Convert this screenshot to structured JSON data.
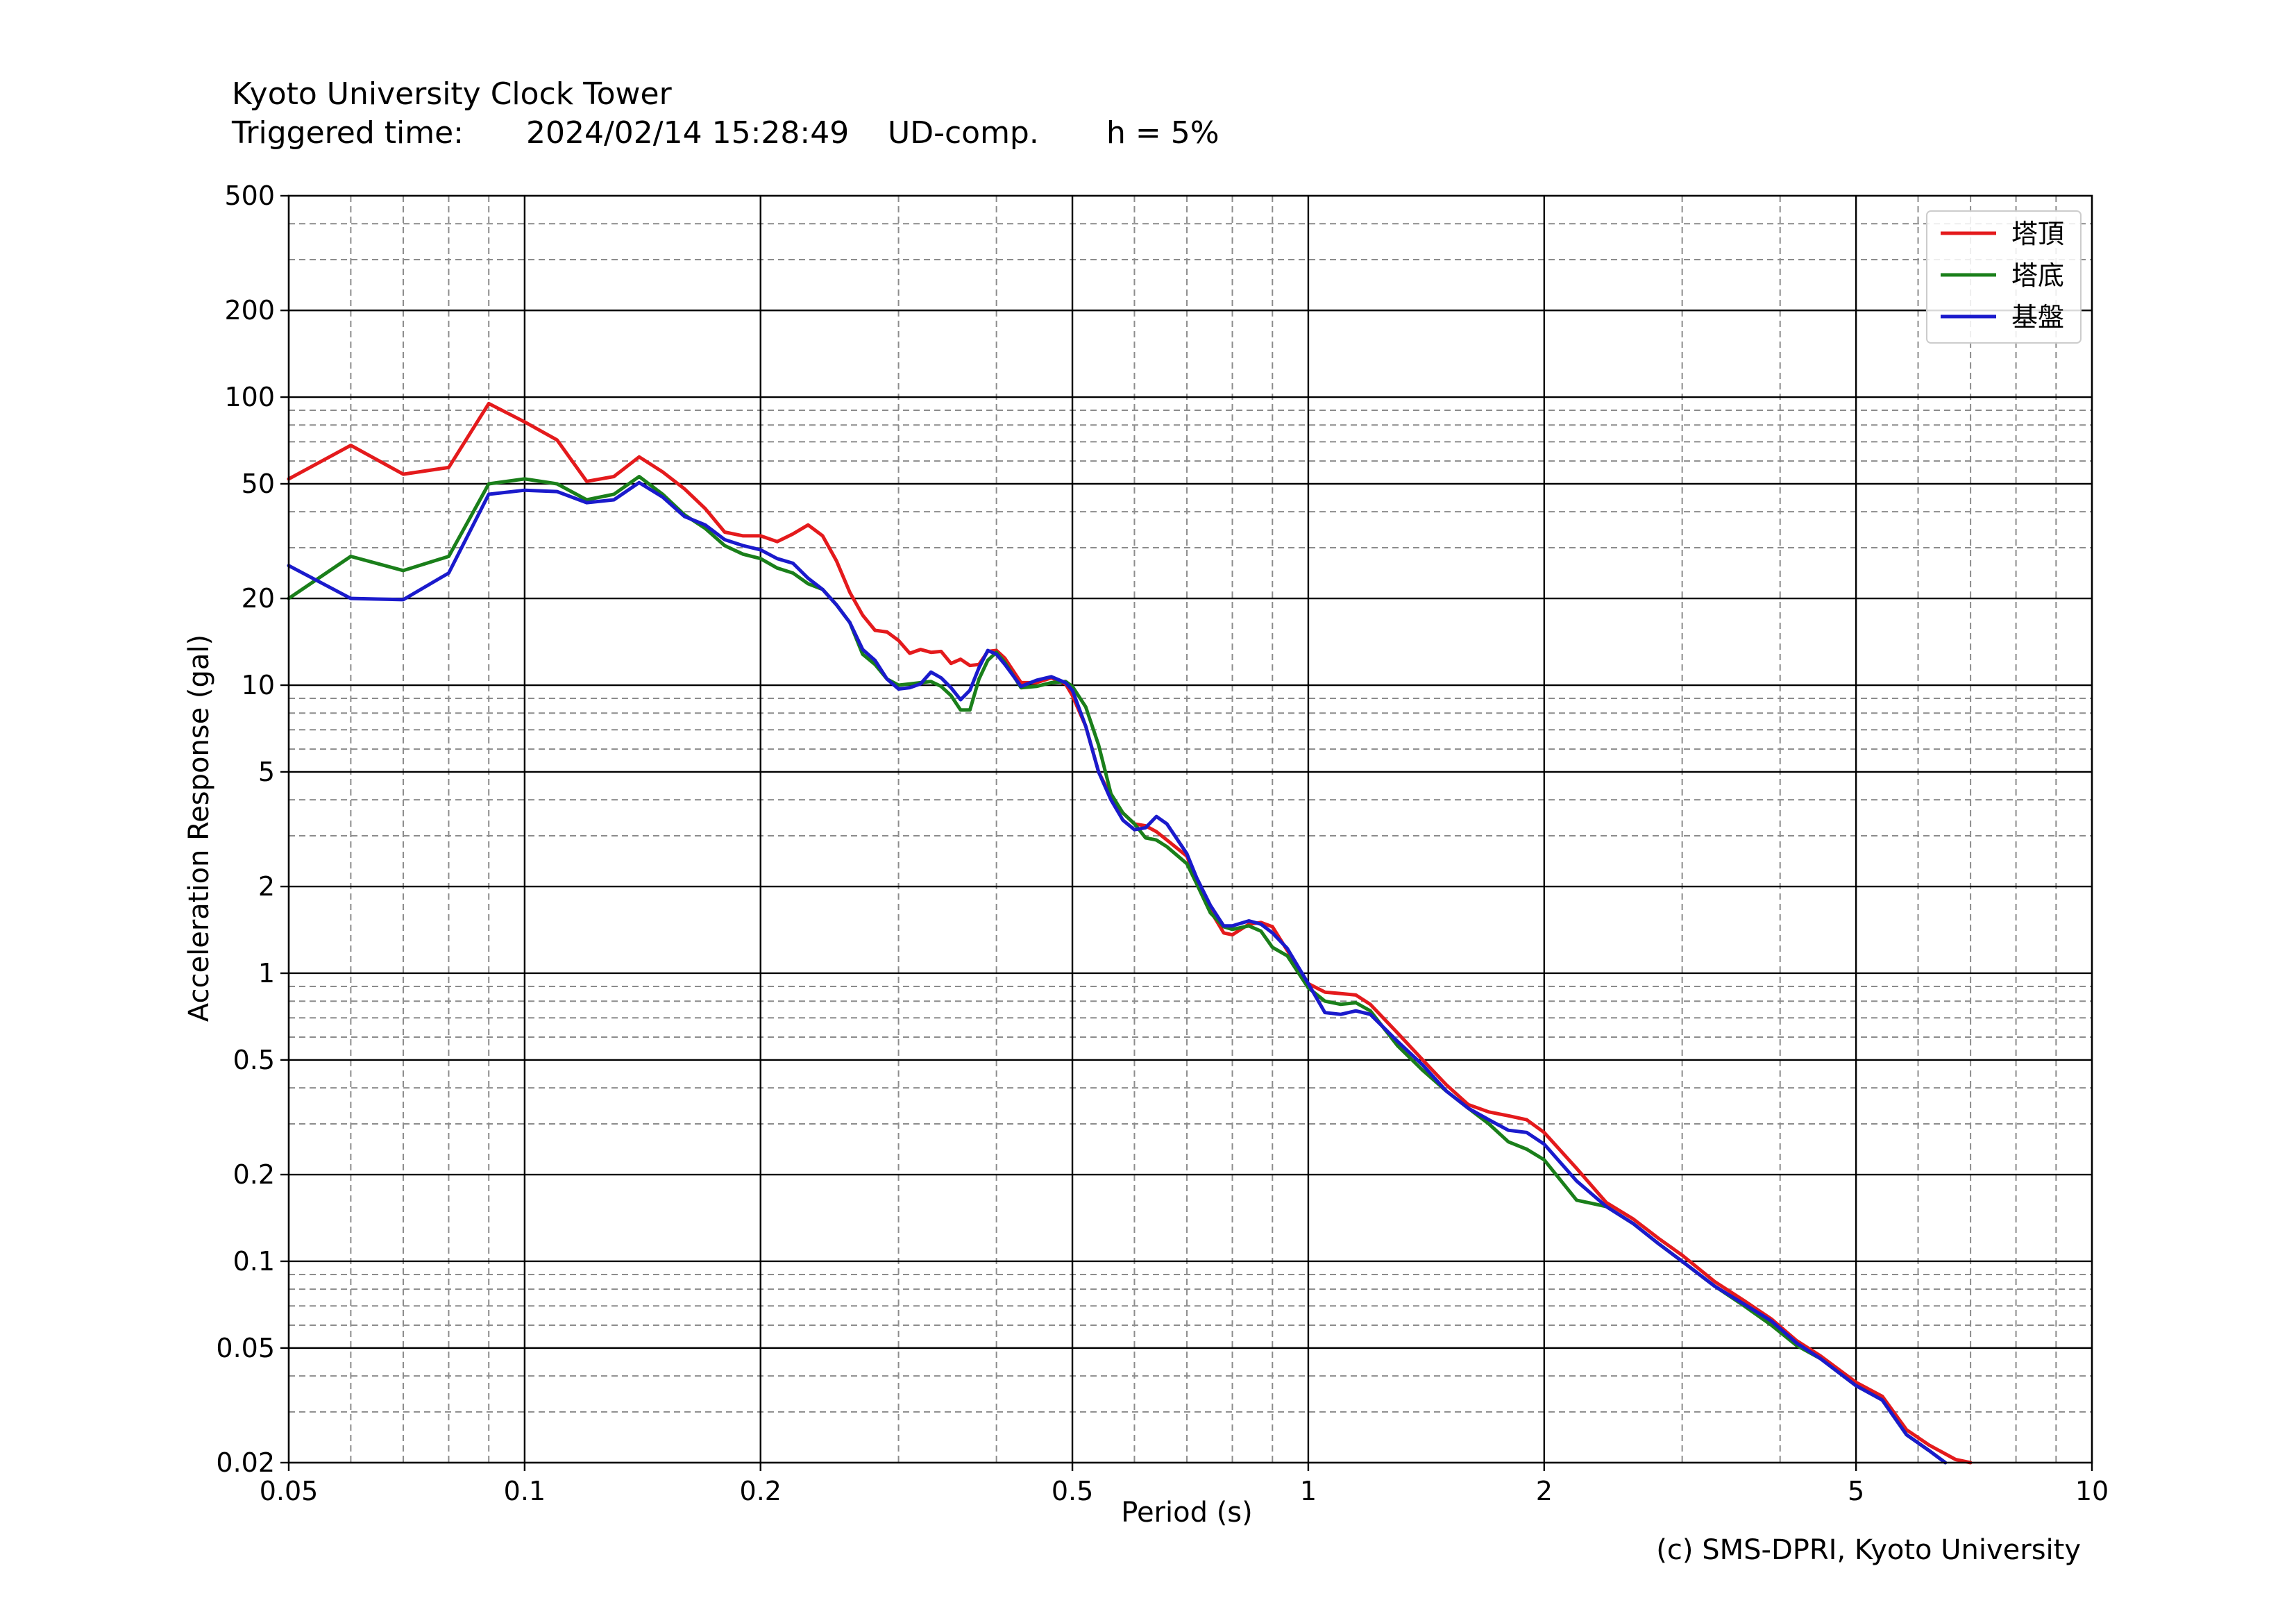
{
  "header": {
    "site": "Kyoto University Clock Tower",
    "triggered_label": "Triggered time:",
    "triggered_time": "2024/02/14 15:28:49",
    "component": "UD-comp.",
    "damping": "h = 5%"
  },
  "credit": "(c) SMS-DPRI, Kyoto University",
  "chart_data": {
    "type": "line",
    "title": "",
    "xlabel": "Period (s)",
    "ylabel": "Acceleration Response (gal)",
    "x_scale": "log",
    "y_scale": "log",
    "xlim": [
      0.05,
      10
    ],
    "ylim": [
      0.02,
      500
    ],
    "grid": true,
    "legend_position": "top-right",
    "x_ticks": [
      0.05,
      0.1,
      0.2,
      0.5,
      1,
      2,
      5,
      10
    ],
    "x_tick_labels": [
      "0.05",
      "0.1",
      "0.2",
      "0.5",
      "1",
      "2",
      "5",
      "10"
    ],
    "y_ticks": [
      0.02,
      0.05,
      0.1,
      0.2,
      0.5,
      1,
      2,
      5,
      10,
      20,
      50,
      100,
      200,
      500
    ],
    "y_tick_labels": [
      "0.02",
      "0.05",
      "0.1",
      "0.2",
      "0.5",
      "1",
      "2",
      "5",
      "10",
      "20",
      "50",
      "100",
      "200",
      "500"
    ],
    "series": [
      {
        "name": "塔頂",
        "color": "#e41a1c",
        "points": [
          [
            0.05,
            52
          ],
          [
            0.06,
            68
          ],
          [
            0.07,
            54
          ],
          [
            0.08,
            57
          ],
          [
            0.09,
            95
          ],
          [
            0.1,
            82
          ],
          [
            0.11,
            71
          ],
          [
            0.12,
            51
          ],
          [
            0.13,
            53
          ],
          [
            0.14,
            62
          ],
          [
            0.15,
            55
          ],
          [
            0.16,
            48
          ],
          [
            0.17,
            41
          ],
          [
            0.18,
            34
          ],
          [
            0.19,
            33
          ],
          [
            0.2,
            33
          ],
          [
            0.21,
            31.5
          ],
          [
            0.22,
            33.5
          ],
          [
            0.23,
            36
          ],
          [
            0.24,
            33
          ],
          [
            0.25,
            27
          ],
          [
            0.26,
            21
          ],
          [
            0.27,
            17.5
          ],
          [
            0.28,
            15.5
          ],
          [
            0.29,
            15.3
          ],
          [
            0.3,
            14.3
          ],
          [
            0.31,
            12.9
          ],
          [
            0.32,
            13.3
          ],
          [
            0.33,
            13
          ],
          [
            0.34,
            13.1
          ],
          [
            0.35,
            11.9
          ],
          [
            0.36,
            12.3
          ],
          [
            0.37,
            11.7
          ],
          [
            0.38,
            11.8
          ],
          [
            0.39,
            13.1
          ],
          [
            0.4,
            13.2
          ],
          [
            0.41,
            12.4
          ],
          [
            0.43,
            10.2
          ],
          [
            0.45,
            10.2
          ],
          [
            0.47,
            10.6
          ],
          [
            0.49,
            10.1
          ],
          [
            0.5,
            9.2
          ],
          [
            0.52,
            7.2
          ],
          [
            0.54,
            5
          ],
          [
            0.56,
            4.1
          ],
          [
            0.58,
            3.6
          ],
          [
            0.6,
            3.3
          ],
          [
            0.62,
            3.25
          ],
          [
            0.64,
            3.1
          ],
          [
            0.66,
            2.9
          ],
          [
            0.7,
            2.55
          ],
          [
            0.72,
            2.1
          ],
          [
            0.75,
            1.65
          ],
          [
            0.78,
            1.38
          ],
          [
            0.8,
            1.36
          ],
          [
            0.84,
            1.48
          ],
          [
            0.87,
            1.5
          ],
          [
            0.9,
            1.45
          ],
          [
            0.94,
            1.2
          ],
          [
            1,
            0.92
          ],
          [
            1.05,
            0.86
          ],
          [
            1.1,
            0.85
          ],
          [
            1.15,
            0.84
          ],
          [
            1.2,
            0.78
          ],
          [
            1.3,
            0.62
          ],
          [
            1.4,
            0.5
          ],
          [
            1.5,
            0.41
          ],
          [
            1.6,
            0.35
          ],
          [
            1.7,
            0.33
          ],
          [
            1.8,
            0.32
          ],
          [
            1.9,
            0.31
          ],
          [
            2,
            0.28
          ],
          [
            2.2,
            0.21
          ],
          [
            2.4,
            0.16
          ],
          [
            2.6,
            0.14
          ],
          [
            2.8,
            0.12
          ],
          [
            3,
            0.105
          ],
          [
            3.3,
            0.085
          ],
          [
            3.6,
            0.073
          ],
          [
            3.9,
            0.063
          ],
          [
            4.2,
            0.053
          ],
          [
            4.5,
            0.047
          ],
          [
            5,
            0.038
          ],
          [
            5.4,
            0.034
          ],
          [
            5.8,
            0.026
          ],
          [
            6.2,
            0.023
          ],
          [
            6.7,
            0.0205
          ],
          [
            7,
            0.02
          ]
        ]
      },
      {
        "name": "塔底",
        "color": "#1a7f1a",
        "points": [
          [
            0.05,
            20
          ],
          [
            0.06,
            28
          ],
          [
            0.07,
            25
          ],
          [
            0.08,
            28
          ],
          [
            0.09,
            50
          ],
          [
            0.1,
            52
          ],
          [
            0.11,
            50
          ],
          [
            0.12,
            44
          ],
          [
            0.13,
            46
          ],
          [
            0.14,
            53
          ],
          [
            0.15,
            46
          ],
          [
            0.16,
            39
          ],
          [
            0.17,
            35
          ],
          [
            0.18,
            30.5
          ],
          [
            0.19,
            28.5
          ],
          [
            0.2,
            27.5
          ],
          [
            0.21,
            25.5
          ],
          [
            0.22,
            24.5
          ],
          [
            0.23,
            22.5
          ],
          [
            0.24,
            21.5
          ],
          [
            0.25,
            19
          ],
          [
            0.26,
            16.5
          ],
          [
            0.27,
            12.8
          ],
          [
            0.28,
            11.8
          ],
          [
            0.29,
            10.5
          ],
          [
            0.3,
            10
          ],
          [
            0.31,
            10.1
          ],
          [
            0.32,
            10.2
          ],
          [
            0.33,
            10.3
          ],
          [
            0.34,
            9.9
          ],
          [
            0.35,
            9.2
          ],
          [
            0.36,
            8.2
          ],
          [
            0.37,
            8.2
          ],
          [
            0.38,
            10.5
          ],
          [
            0.39,
            12.2
          ],
          [
            0.4,
            13
          ],
          [
            0.41,
            12
          ],
          [
            0.43,
            9.8
          ],
          [
            0.45,
            9.9
          ],
          [
            0.47,
            10.2
          ],
          [
            0.49,
            10.3
          ],
          [
            0.5,
            9.9
          ],
          [
            0.52,
            8.4
          ],
          [
            0.54,
            6.2
          ],
          [
            0.56,
            4.2
          ],
          [
            0.58,
            3.6
          ],
          [
            0.6,
            3.3
          ],
          [
            0.62,
            2.95
          ],
          [
            0.64,
            2.9
          ],
          [
            0.66,
            2.75
          ],
          [
            0.7,
            2.4
          ],
          [
            0.72,
            2.05
          ],
          [
            0.75,
            1.62
          ],
          [
            0.78,
            1.45
          ],
          [
            0.8,
            1.42
          ],
          [
            0.84,
            1.46
          ],
          [
            0.87,
            1.4
          ],
          [
            0.9,
            1.23
          ],
          [
            0.94,
            1.15
          ],
          [
            1,
            0.89
          ],
          [
            1.05,
            0.8
          ],
          [
            1.1,
            0.78
          ],
          [
            1.15,
            0.79
          ],
          [
            1.2,
            0.74
          ],
          [
            1.3,
            0.56
          ],
          [
            1.4,
            0.46
          ],
          [
            1.5,
            0.39
          ],
          [
            1.6,
            0.34
          ],
          [
            1.7,
            0.3
          ],
          [
            1.8,
            0.26
          ],
          [
            1.9,
            0.245
          ],
          [
            2,
            0.225
          ],
          [
            2.2,
            0.163
          ],
          [
            2.4,
            0.155
          ],
          [
            2.6,
            0.135
          ],
          [
            2.8,
            0.115
          ],
          [
            3,
            0.1
          ],
          [
            3.3,
            0.082
          ],
          [
            3.6,
            0.07
          ],
          [
            3.9,
            0.06
          ],
          [
            4.2,
            0.051
          ],
          [
            4.5,
            0.046
          ],
          [
            5,
            0.037
          ],
          [
            5.4,
            0.033
          ],
          [
            5.8,
            0.025
          ],
          [
            6.2,
            0.022
          ],
          [
            6.5,
            0.02
          ]
        ]
      },
      {
        "name": "基盤",
        "color": "#1a1acc",
        "points": [
          [
            0.05,
            26
          ],
          [
            0.06,
            20
          ],
          [
            0.07,
            19.8
          ],
          [
            0.08,
            24.5
          ],
          [
            0.09,
            46
          ],
          [
            0.1,
            47.5
          ],
          [
            0.11,
            47
          ],
          [
            0.12,
            43
          ],
          [
            0.13,
            44
          ],
          [
            0.14,
            50.5
          ],
          [
            0.15,
            45
          ],
          [
            0.16,
            38.5
          ],
          [
            0.17,
            36
          ],
          [
            0.18,
            32
          ],
          [
            0.19,
            30.5
          ],
          [
            0.2,
            29.5
          ],
          [
            0.21,
            27.5
          ],
          [
            0.22,
            26.5
          ],
          [
            0.23,
            23.5
          ],
          [
            0.24,
            21.5
          ],
          [
            0.25,
            19
          ],
          [
            0.26,
            16.5
          ],
          [
            0.27,
            13.3
          ],
          [
            0.28,
            12.2
          ],
          [
            0.29,
            10.5
          ],
          [
            0.3,
            9.7
          ],
          [
            0.31,
            9.8
          ],
          [
            0.32,
            10.1
          ],
          [
            0.33,
            11.1
          ],
          [
            0.34,
            10.6
          ],
          [
            0.35,
            9.8
          ],
          [
            0.36,
            8.9
          ],
          [
            0.37,
            9.6
          ],
          [
            0.38,
            11.5
          ],
          [
            0.39,
            13.2
          ],
          [
            0.4,
            12.8
          ],
          [
            0.41,
            11.8
          ],
          [
            0.43,
            9.9
          ],
          [
            0.45,
            10.4
          ],
          [
            0.47,
            10.7
          ],
          [
            0.49,
            10.2
          ],
          [
            0.5,
            9.6
          ],
          [
            0.52,
            7.2
          ],
          [
            0.54,
            5
          ],
          [
            0.56,
            4.0
          ],
          [
            0.58,
            3.4
          ],
          [
            0.6,
            3.15
          ],
          [
            0.62,
            3.2
          ],
          [
            0.64,
            3.5
          ],
          [
            0.66,
            3.3
          ],
          [
            0.7,
            2.6
          ],
          [
            0.72,
            2.15
          ],
          [
            0.75,
            1.72
          ],
          [
            0.78,
            1.46
          ],
          [
            0.8,
            1.46
          ],
          [
            0.84,
            1.52
          ],
          [
            0.87,
            1.48
          ],
          [
            0.9,
            1.38
          ],
          [
            0.94,
            1.22
          ],
          [
            1,
            0.92
          ],
          [
            1.05,
            0.73
          ],
          [
            1.1,
            0.72
          ],
          [
            1.15,
            0.74
          ],
          [
            1.2,
            0.72
          ],
          [
            1.3,
            0.58
          ],
          [
            1.4,
            0.48
          ],
          [
            1.5,
            0.39
          ],
          [
            1.6,
            0.34
          ],
          [
            1.7,
            0.31
          ],
          [
            1.8,
            0.285
          ],
          [
            1.9,
            0.28
          ],
          [
            2,
            0.255
          ],
          [
            2.2,
            0.19
          ],
          [
            2.4,
            0.155
          ],
          [
            2.6,
            0.135
          ],
          [
            2.8,
            0.115
          ],
          [
            3,
            0.1
          ],
          [
            3.3,
            0.082
          ],
          [
            3.6,
            0.071
          ],
          [
            3.9,
            0.062
          ],
          [
            4.2,
            0.052
          ],
          [
            4.5,
            0.046
          ],
          [
            5,
            0.037
          ],
          [
            5.4,
            0.033
          ],
          [
            5.8,
            0.025
          ],
          [
            6.2,
            0.022
          ],
          [
            6.5,
            0.02
          ]
        ]
      }
    ]
  }
}
